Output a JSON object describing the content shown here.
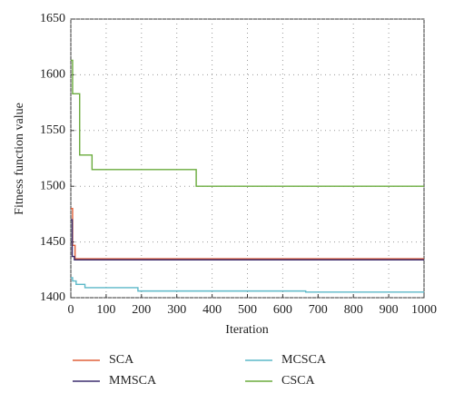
{
  "chart_data": {
    "type": "line",
    "xlabel": "Iteration",
    "ylabel": "Fitness function value",
    "xlim": [
      0,
      1000
    ],
    "xticks": [
      0,
      100,
      200,
      300,
      400,
      500,
      600,
      700,
      800,
      900,
      1000
    ],
    "ylim": [
      1400,
      1650
    ],
    "yticks": [
      1400,
      1450,
      1500,
      1550,
      1600,
      1650
    ],
    "grid": true,
    "step": true,
    "series": [
      {
        "name": "SCA",
        "color": "#e0603a",
        "x": [
          0,
          5,
          12,
          1000
        ],
        "values": [
          1480,
          1447,
          1435,
          1435
        ]
      },
      {
        "name": "MMSCA",
        "color": "#3c2d6e",
        "x": [
          0,
          4,
          10,
          1000
        ],
        "values": [
          1470,
          1437,
          1434,
          1434
        ]
      },
      {
        "name": "MCSCA",
        "color": "#5bb8c8",
        "x": [
          0,
          5,
          15,
          40,
          190,
          665,
          1000
        ],
        "values": [
          1418,
          1415,
          1412,
          1409,
          1406,
          1405,
          1405
        ]
      },
      {
        "name": "CSCA",
        "color": "#6aab3c",
        "x": [
          0,
          5,
          25,
          60,
          355,
          1000
        ],
        "values": [
          1613,
          1583,
          1528,
          1515,
          1500,
          1500
        ]
      }
    ]
  }
}
